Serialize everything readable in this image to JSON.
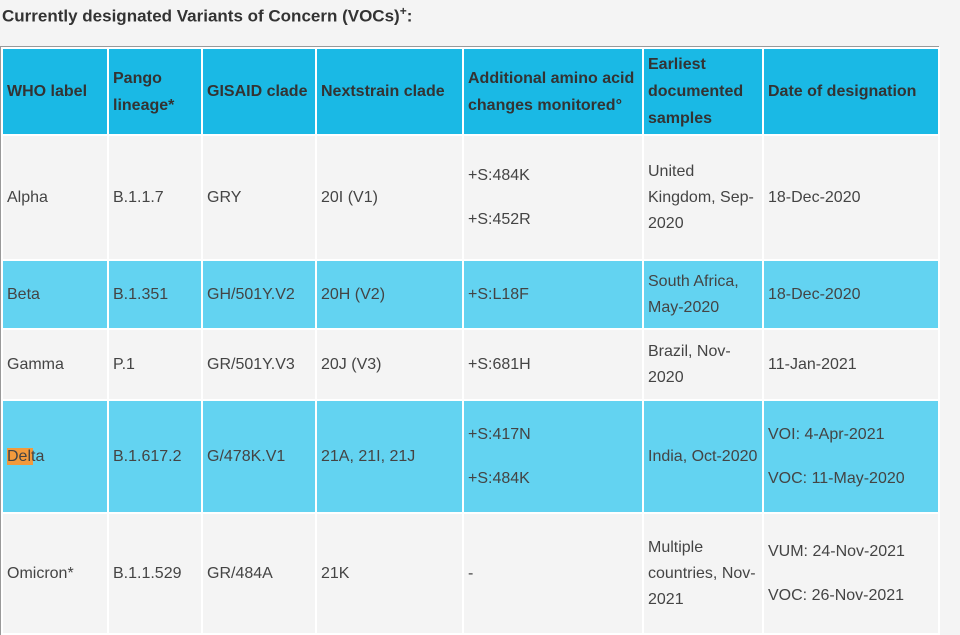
{
  "title": {
    "text": "Currently designated Variants of Concern (VOCs)",
    "sup": "+",
    "end": ":"
  },
  "table": {
    "header": [
      "WHO label",
      "Pango lineage*",
      "GISAID clade",
      "Nextstrain clade",
      "Additional amino acid changes monitored°",
      "Earliest documented samples",
      "Date of designation"
    ],
    "rows": [
      [
        "Alpha",
        "B.1.1.7",
        "GRY",
        "20I (V1)",
        [
          "+S:484K",
          "+S:452R"
        ],
        "United Kingdom, Sep-2020",
        "18-Dec-2020"
      ],
      [
        "Beta",
        "B.1.351",
        "GH/501Y.V2",
        "20H (V2)",
        "+S:L18F",
        "South Africa, May-2020",
        "18-Dec-2020"
      ],
      [
        "Gamma",
        "P.1",
        "GR/501Y.V3",
        "20J (V3)",
        "+S:681H",
        "Brazil, Nov-2020",
        "11-Jan-2021"
      ],
      [
        "Delta",
        "B.1.617.2",
        "G/478K.V1",
        "21A, 21I, 21J",
        [
          "+S:417N",
          "+S:484K"
        ],
        "India, Oct-2020",
        [
          "VOI: 4-Apr-2021",
          "VOC: 11-May-2020"
        ]
      ],
      [
        "Omicron*",
        "B.1.1.529",
        "GR/484A",
        "21K",
        "-",
        "Multiple countries, Nov-2021",
        [
          "VUM: 24-Nov-2021",
          "VOC: 26-Nov-2021"
        ]
      ]
    ]
  }
}
